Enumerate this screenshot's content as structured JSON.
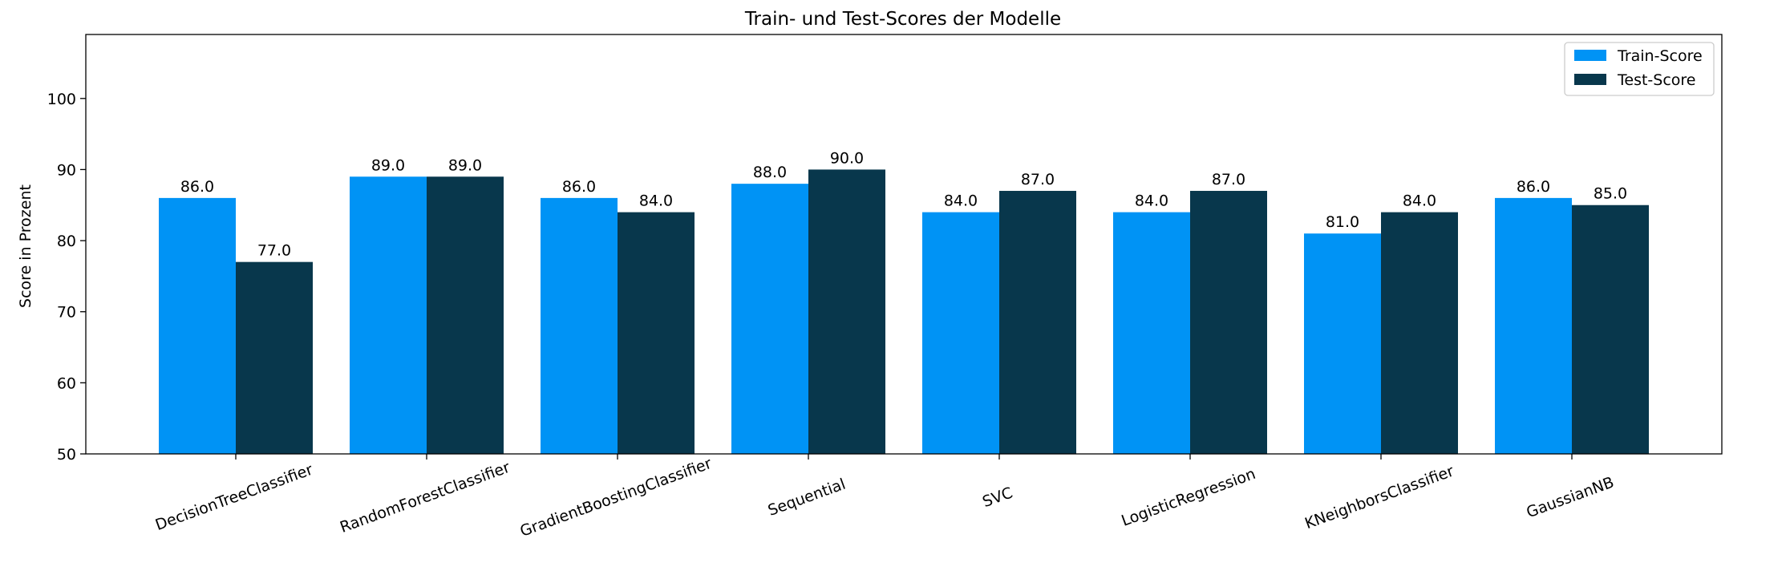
{
  "chart_data": {
    "type": "bar",
    "title": "Train- und Test-Scores der Modelle",
    "xlabel": "",
    "ylabel": "Score in Prozent",
    "ylim": [
      50,
      109
    ],
    "yticks": [
      50,
      60,
      70,
      80,
      90,
      100
    ],
    "ytick_labels": [
      "50",
      "60",
      "70",
      "80",
      "90",
      "100"
    ],
    "grid": false,
    "legend_position": "top-right",
    "categories": [
      "DecisionTreeClassifier",
      "RandomForestClassifier",
      "GradientBoostingClassifier",
      "Sequential",
      "SVC",
      "LogisticRegression",
      "KNeighborsClassifier",
      "GaussianNB"
    ],
    "series": [
      {
        "name": "Train-Score",
        "color": "#0093F5",
        "values": [
          86.0,
          89.0,
          86.0,
          88.0,
          84.0,
          84.0,
          81.0,
          86.0
        ],
        "labels": [
          "86.0",
          "89.0",
          "86.0",
          "88.0",
          "84.0",
          "84.0",
          "81.0",
          "86.0"
        ]
      },
      {
        "name": "Test-Score",
        "color": "#08374C",
        "values": [
          77.0,
          89.0,
          84.0,
          90.0,
          87.0,
          87.0,
          84.0,
          85.0
        ],
        "labels": [
          "77.0",
          "89.0",
          "84.0",
          "90.0",
          "87.0",
          "87.0",
          "84.0",
          "85.0"
        ]
      }
    ]
  }
}
